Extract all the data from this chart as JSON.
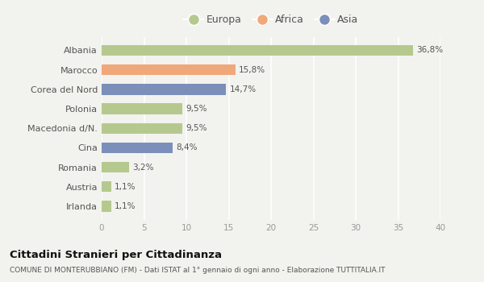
{
  "categories": [
    "Albania",
    "Marocco",
    "Corea del Nord",
    "Polonia",
    "Macedonia d/N.",
    "Cina",
    "Romania",
    "Austria",
    "Irlanda"
  ],
  "values": [
    36.8,
    15.8,
    14.7,
    9.5,
    9.5,
    8.4,
    3.2,
    1.1,
    1.1
  ],
  "labels": [
    "36,8%",
    "15,8%",
    "14,7%",
    "9,5%",
    "9,5%",
    "8,4%",
    "3,2%",
    "1,1%",
    "1,1%"
  ],
  "colors": [
    "#b5c98e",
    "#f0a87a",
    "#7b8fba",
    "#b5c98e",
    "#b5c98e",
    "#7b8fba",
    "#b5c98e",
    "#b5c98e",
    "#b5c98e"
  ],
  "legend_labels": [
    "Europa",
    "Africa",
    "Asia"
  ],
  "legend_colors": [
    "#b5c98e",
    "#f0a87a",
    "#7b8fba"
  ],
  "xlim": [
    0,
    40
  ],
  "xticks": [
    0,
    5,
    10,
    15,
    20,
    25,
    30,
    35,
    40
  ],
  "title": "Cittadini Stranieri per Cittadinanza",
  "subtitle": "COMUNE DI MONTERUBBIANO (FM) - Dati ISTAT al 1° gennaio di ogni anno - Elaborazione TUTTITALIA.IT",
  "background_color": "#f2f2ee",
  "grid_color": "#ffffff",
  "bar_height": 0.55
}
